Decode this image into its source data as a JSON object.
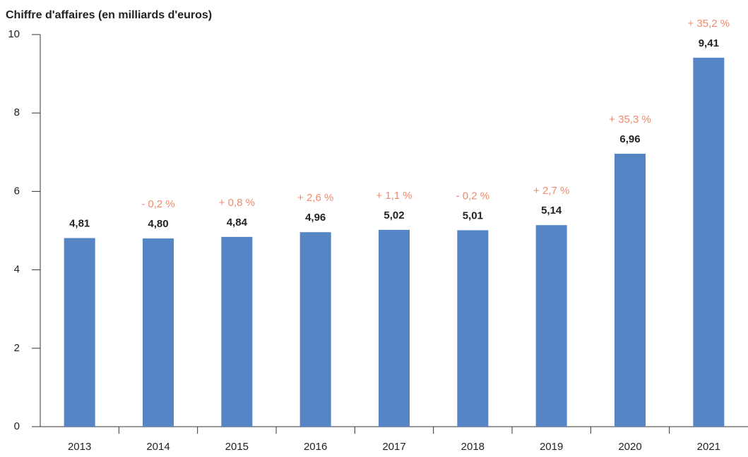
{
  "chart_data": {
    "type": "bar",
    "title": "Chiffre d'affaires (en milliards d'euros)",
    "categories": [
      "2013",
      "2014",
      "2015",
      "2016",
      "2017",
      "2018",
      "2019",
      "2020",
      "2021"
    ],
    "values": [
      4.81,
      4.8,
      4.84,
      4.96,
      5.02,
      5.01,
      5.14,
      6.96,
      9.41
    ],
    "value_labels": [
      "4,81",
      "4,80",
      "4,84",
      "4,96",
      "5,02",
      "5,01",
      "5,14",
      "6,96",
      "9,41"
    ],
    "change_labels": [
      null,
      "- 0,2 %",
      "+ 0,8 %",
      "+ 2,6 %",
      "+ 1,1 %",
      "- 0,2 %",
      "+ 2,7 %",
      "+ 35,3 %",
      "+ 35,2 %"
    ],
    "color": "#5585c5",
    "ylim": [
      0,
      10
    ],
    "yticks": [
      0,
      2,
      4,
      6,
      8,
      10
    ],
    "grid": false
  }
}
